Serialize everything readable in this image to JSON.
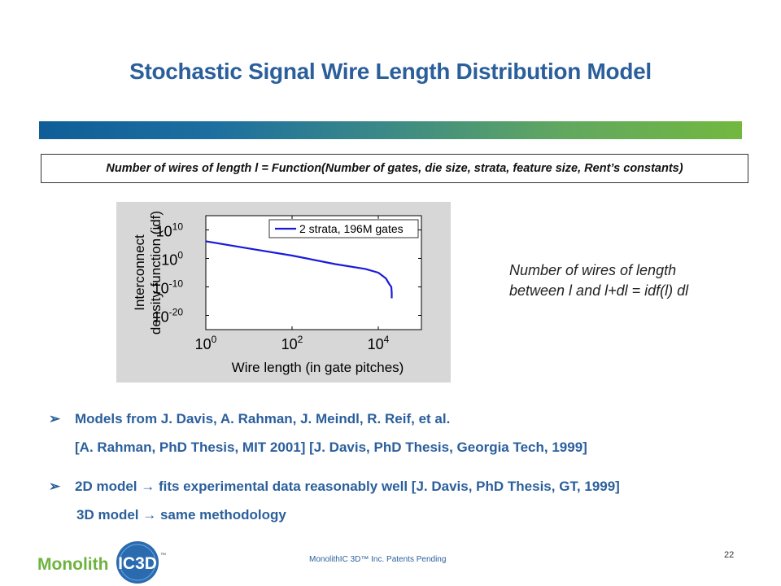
{
  "slide": {
    "title": "Stochastic Signal Wire Length Distribution Model",
    "formula": "Number of wires of length l = Function(Number of gates, die size, strata, feature size, Rent’s constants)",
    "side_note": [
      "Number of wires of length",
      "between l and l+dl = idf(l) dl"
    ],
    "bullets": [
      {
        "marker": "➢",
        "line1": "Models from J. Davis, A. Rahman, J. Meindl, R. Reif, et al.",
        "line2": "[A. Rahman, PhD Thesis, MIT 2001] [J. Davis, PhD Thesis, Georgia Tech, 1999]"
      },
      {
        "marker": "➢",
        "line1": "2D model  → fits experimental data reasonably well [J. Davis, PhD Thesis, GT, 1999]",
        "line2": "3D model  → same methodology"
      }
    ],
    "footer": "MonolithIC 3D™ Inc. Patents Pending",
    "page_number": "22",
    "logo": {
      "text_left": "Monolith",
      "text_badge": "IC3D",
      "mark": "™"
    }
  },
  "colors": {
    "title": "#2b5f9c",
    "series": "#1a1adb",
    "panel_bg": "#d7d7d7",
    "logo_green": "#6db33f",
    "logo_blue": "#2a6bb0"
  },
  "chart_data": {
    "type": "line",
    "xscale": "log",
    "yscale": "log",
    "xlabel": "Wire length (in gate pitches)",
    "ylabel": [
      "Interconnect",
      "density function (idf)"
    ],
    "xlim": [
      1,
      100000
    ],
    "ylim": [
      1e-25,
      1000000000000000.0
    ],
    "xticks": [
      {
        "value": 1,
        "base": "10",
        "exp": "0"
      },
      {
        "value": 100,
        "base": "10",
        "exp": "2"
      },
      {
        "value": 10000,
        "base": "10",
        "exp": "4"
      }
    ],
    "yticks": [
      {
        "value": 10000000000.0,
        "base": "10",
        "exp": "10"
      },
      {
        "value": 1,
        "base": "10",
        "exp": "0"
      },
      {
        "value": 1e-10,
        "base": "10",
        "exp": "-10"
      },
      {
        "value": 1e-20,
        "base": "10",
        "exp": "-20"
      }
    ],
    "legend": "top-right",
    "grid": false,
    "series": [
      {
        "name": "2 strata, 196M gates",
        "x": [
          1,
          10,
          100,
          1000,
          5000,
          10000,
          15000,
          18000,
          20000,
          20500,
          20500
        ],
        "y": [
          1000000.0,
          3000.0,
          10.0,
          0.01,
          0.0002,
          1e-05,
          1e-07,
          1e-09,
          1e-10,
          1e-12,
          1e-14
        ]
      }
    ]
  }
}
